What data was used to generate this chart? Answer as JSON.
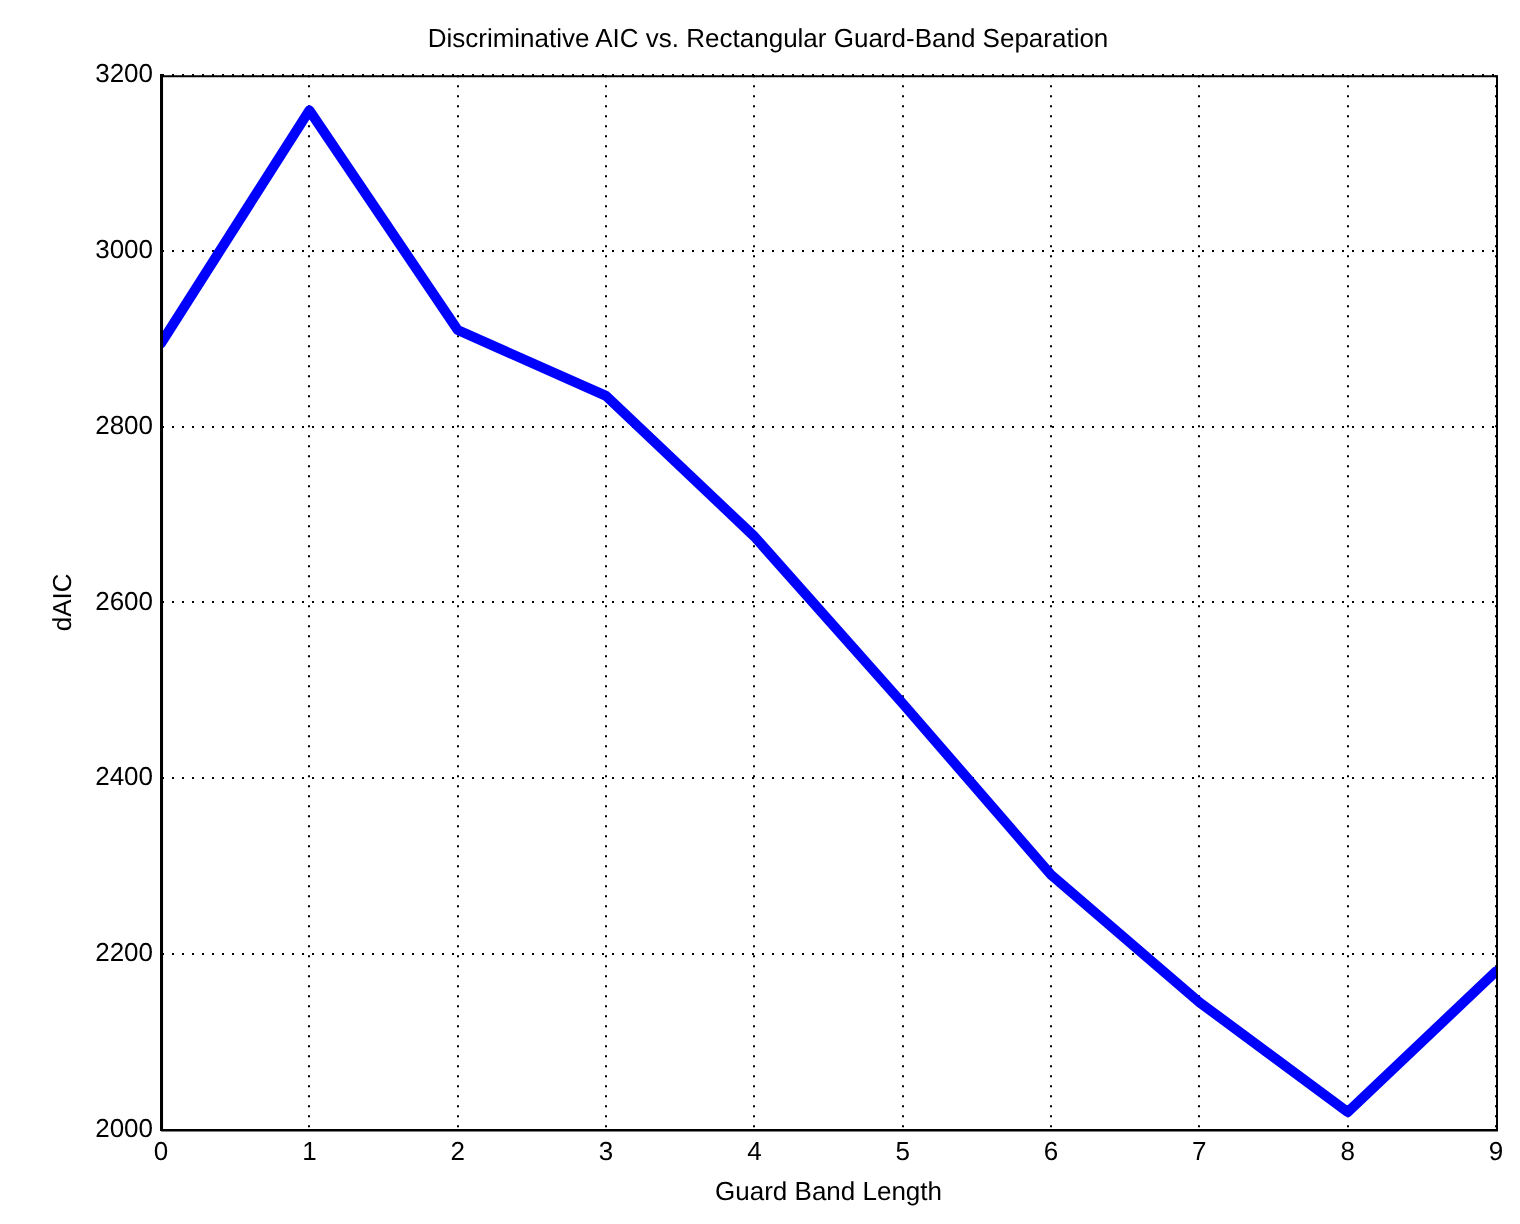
{
  "chart_data": {
    "type": "line",
    "title": "Discriminative AIC vs. Rectangular Guard-Band Separation",
    "xlabel": "Guard Band Length",
    "ylabel": "dAIC",
    "x": [
      0,
      1,
      2,
      3,
      4,
      5,
      6,
      7,
      8,
      9
    ],
    "series": [
      {
        "color": "#0000ff",
        "values": [
          2895,
          3160,
          2910,
          2835,
          2675,
          2485,
          2290,
          2145,
          2020,
          2180
        ]
      }
    ],
    "xlim": [
      0,
      9
    ],
    "xticks": [
      0,
      1,
      2,
      3,
      4,
      5,
      6,
      7,
      8,
      9
    ],
    "ylim": [
      2000,
      3200
    ],
    "yticks": [
      2000,
      2200,
      2400,
      2600,
      2800,
      3000,
      3200
    ],
    "grid": true,
    "legend": false,
    "marker": "none",
    "line_style": "solid"
  }
}
